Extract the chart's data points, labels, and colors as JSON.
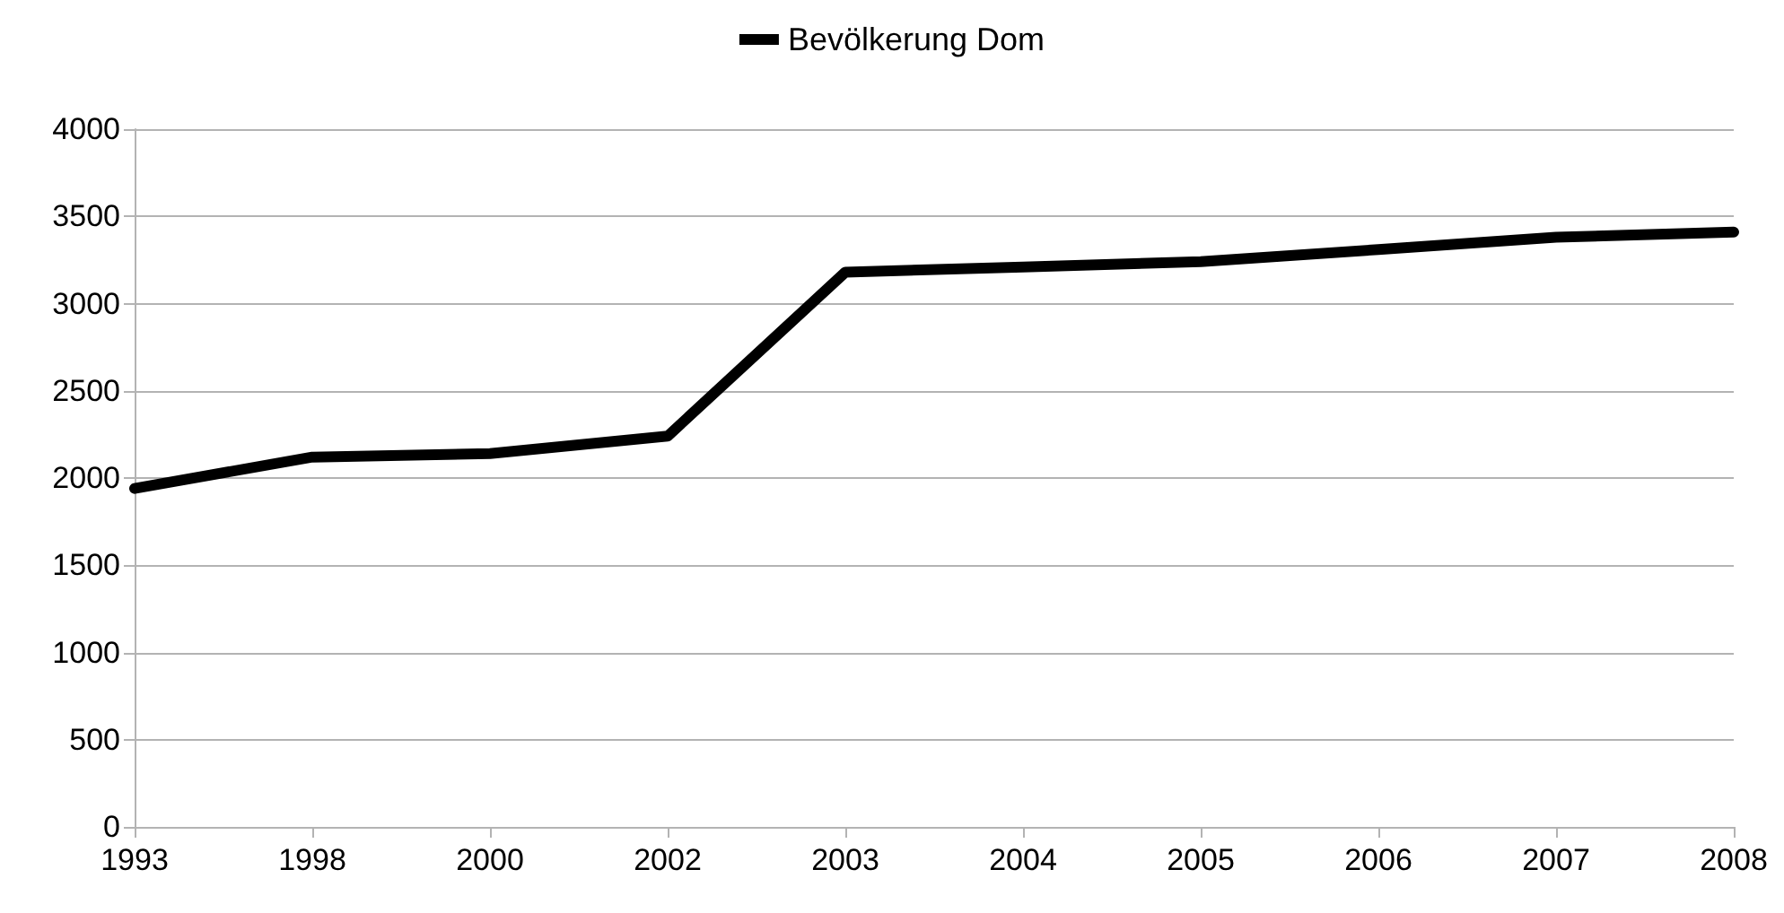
{
  "chart_data": {
    "type": "line",
    "categories": [
      "1993",
      "1998",
      "2000",
      "2002",
      "2003",
      "2004",
      "2005",
      "2006",
      "2007",
      "2008"
    ],
    "series": [
      {
        "name": "Bevölkerung Dom",
        "color": "#000000",
        "values": [
          1940,
          2120,
          2140,
          2240,
          3180,
          3210,
          3240,
          3310,
          3380,
          3410
        ]
      }
    ],
    "ylim": [
      0,
      4000
    ],
    "yticks": [
      0,
      500,
      1000,
      1500,
      2000,
      2500,
      3000,
      3500,
      4000
    ],
    "grid": "y",
    "legend": "top",
    "marker": "none",
    "line_style": "solid"
  }
}
